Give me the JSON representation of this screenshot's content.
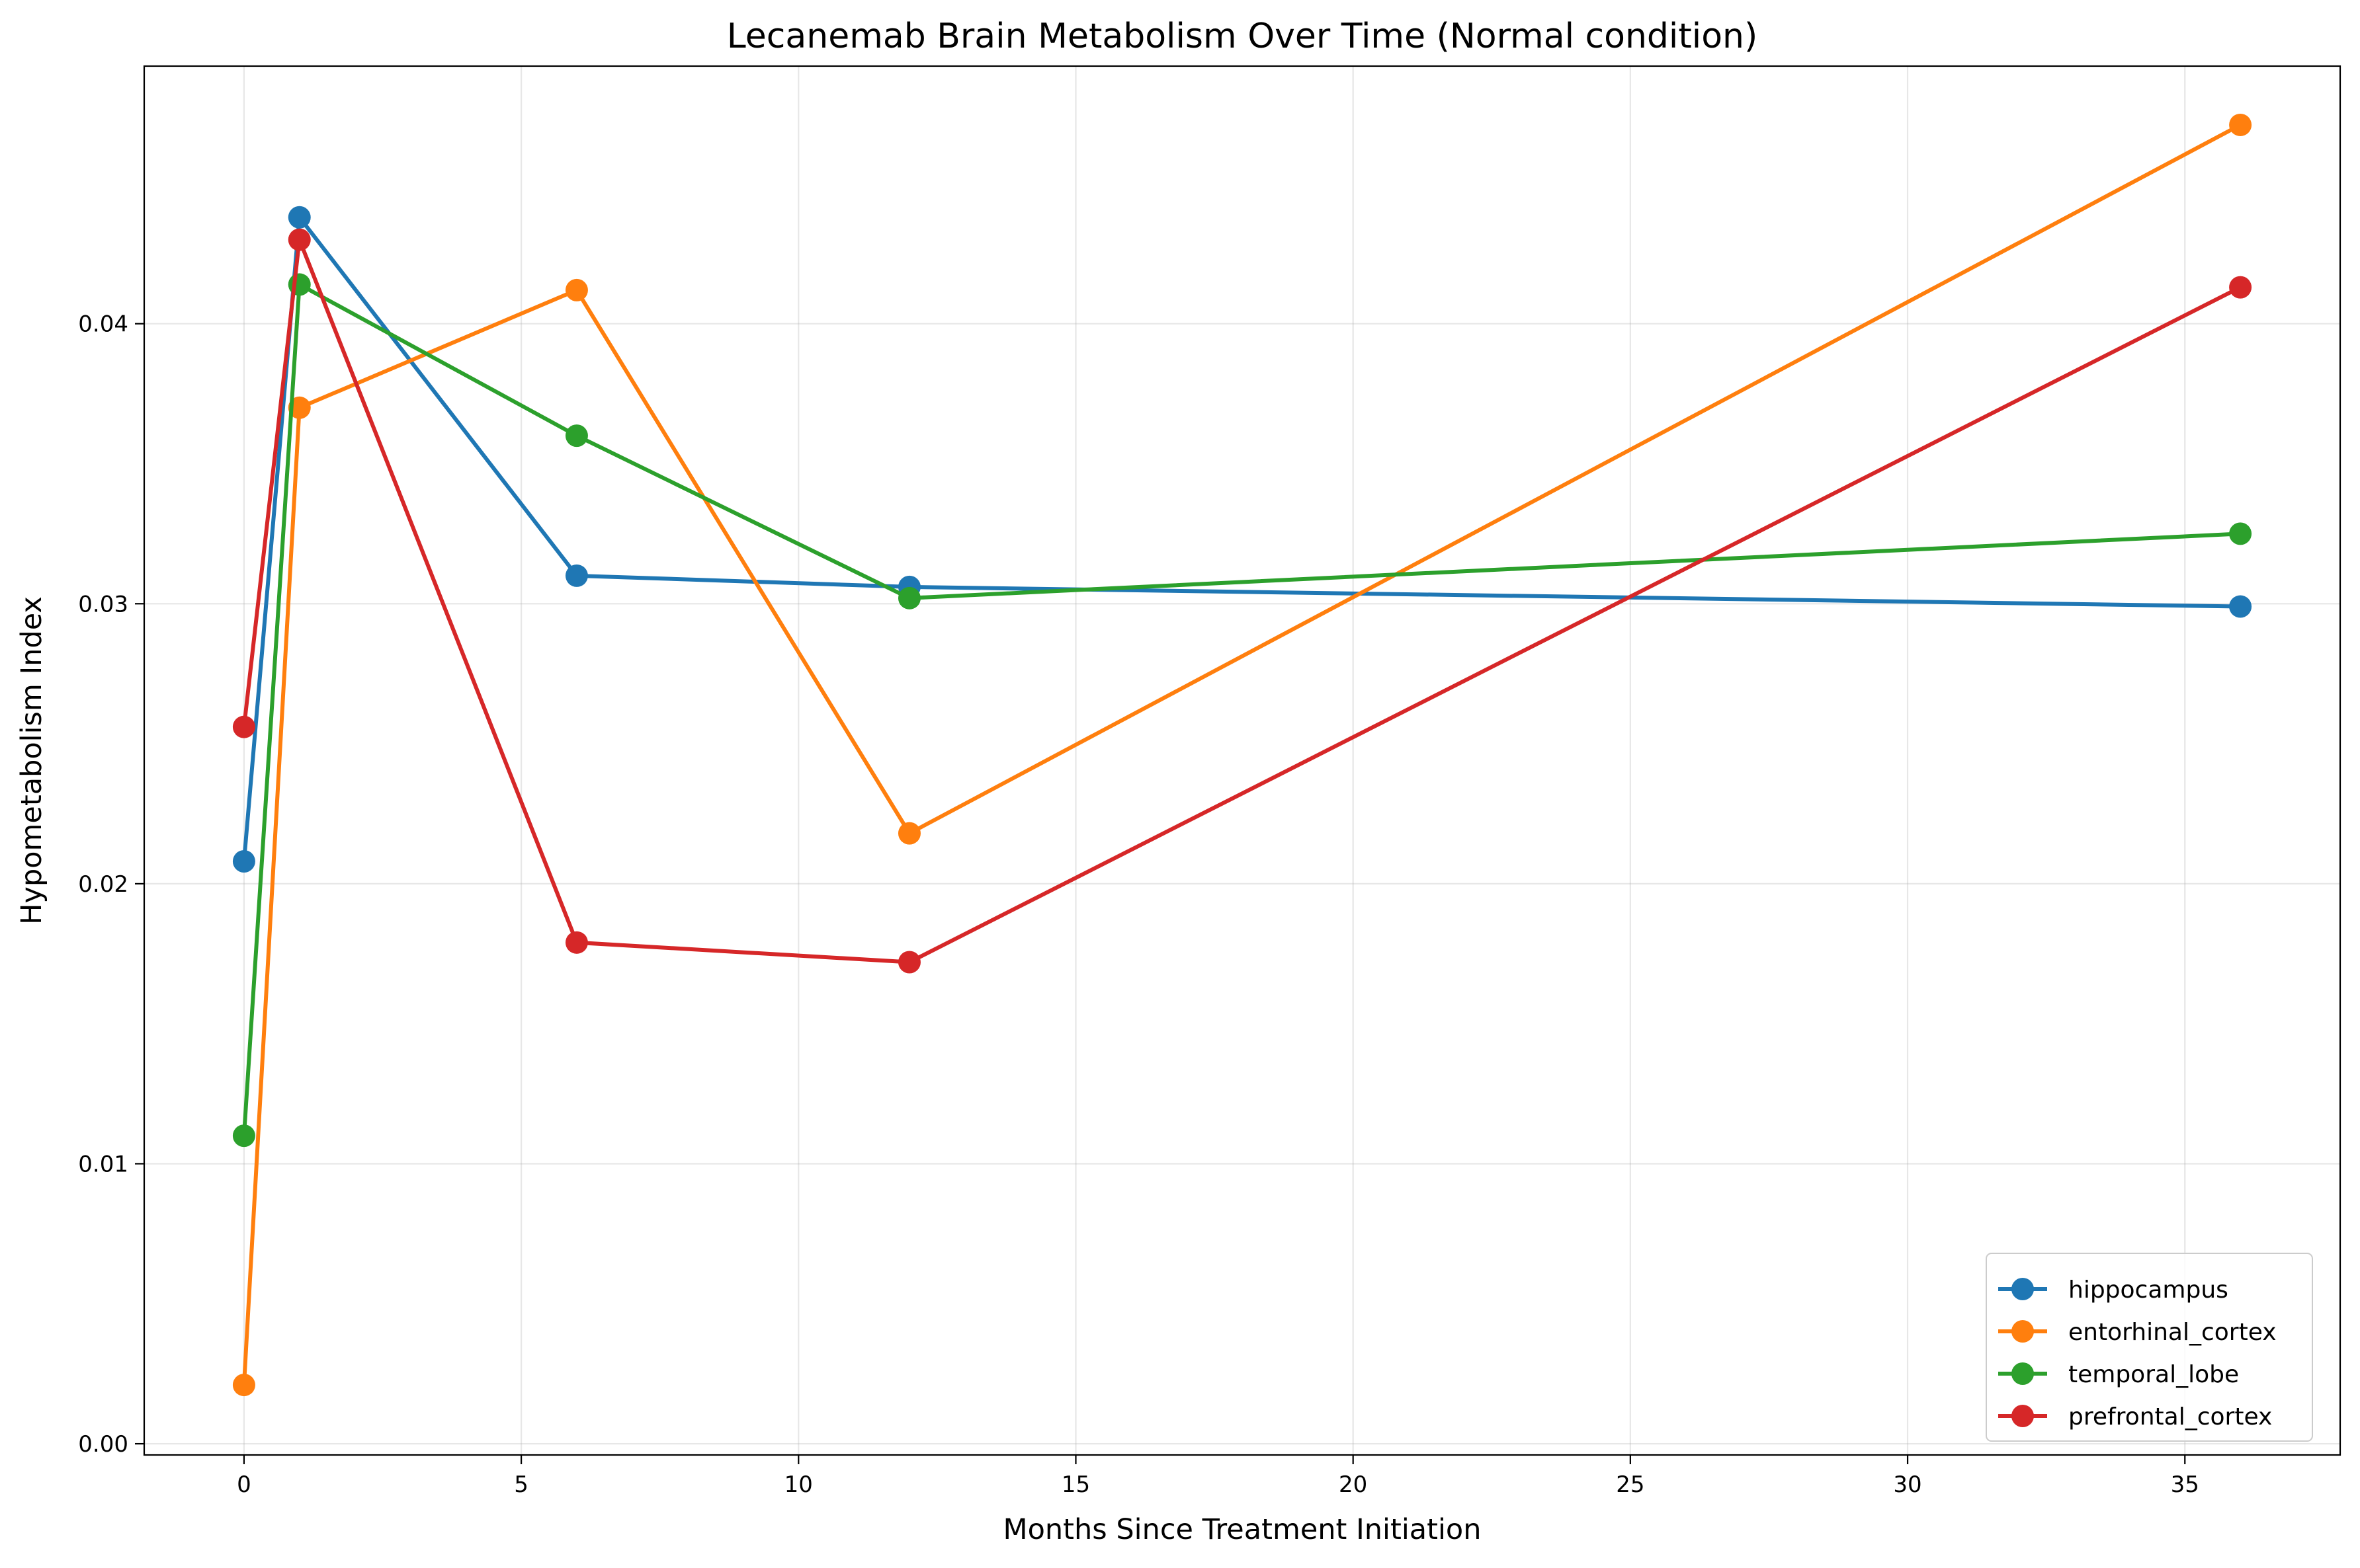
{
  "chart_data": {
    "type": "line",
    "title": "Lecanemab Brain Metabolism Over Time (Normal condition)",
    "xlabel": "Months Since Treatment Initiation",
    "ylabel": "Hypometabolism Index",
    "xlim": [
      -1.8,
      37.8
    ],
    "ylim": [
      -0.0004,
      0.0492
    ],
    "xticks": [
      0,
      5,
      10,
      15,
      20,
      25,
      30,
      35
    ],
    "yticks": [
      0.0,
      0.01,
      0.02,
      0.03,
      0.04
    ],
    "xtick_labels": [
      "0",
      "5",
      "10",
      "15",
      "20",
      "25",
      "30",
      "35"
    ],
    "ytick_labels": [
      "0.00",
      "0.01",
      "0.02",
      "0.03",
      "0.04"
    ],
    "grid": true,
    "legend_position": "lower-right",
    "x": [
      0,
      1,
      6,
      12,
      36
    ],
    "series": [
      {
        "name": "hippocampus",
        "color": "#1f77b4",
        "values": [
          0.0208,
          0.0438,
          0.031,
          0.0306,
          0.0299
        ]
      },
      {
        "name": "entorhinal_cortex",
        "color": "#ff7f0e",
        "values": [
          0.0021,
          0.037,
          0.0412,
          0.0218,
          0.0471
        ]
      },
      {
        "name": "temporal_lobe",
        "color": "#2ca02c",
        "values": [
          0.011,
          0.0414,
          0.036,
          0.0302,
          0.0325
        ]
      },
      {
        "name": "prefrontal_cortex",
        "color": "#d62728",
        "values": [
          0.0256,
          0.043,
          0.0179,
          0.0172,
          0.0413
        ]
      }
    ]
  }
}
